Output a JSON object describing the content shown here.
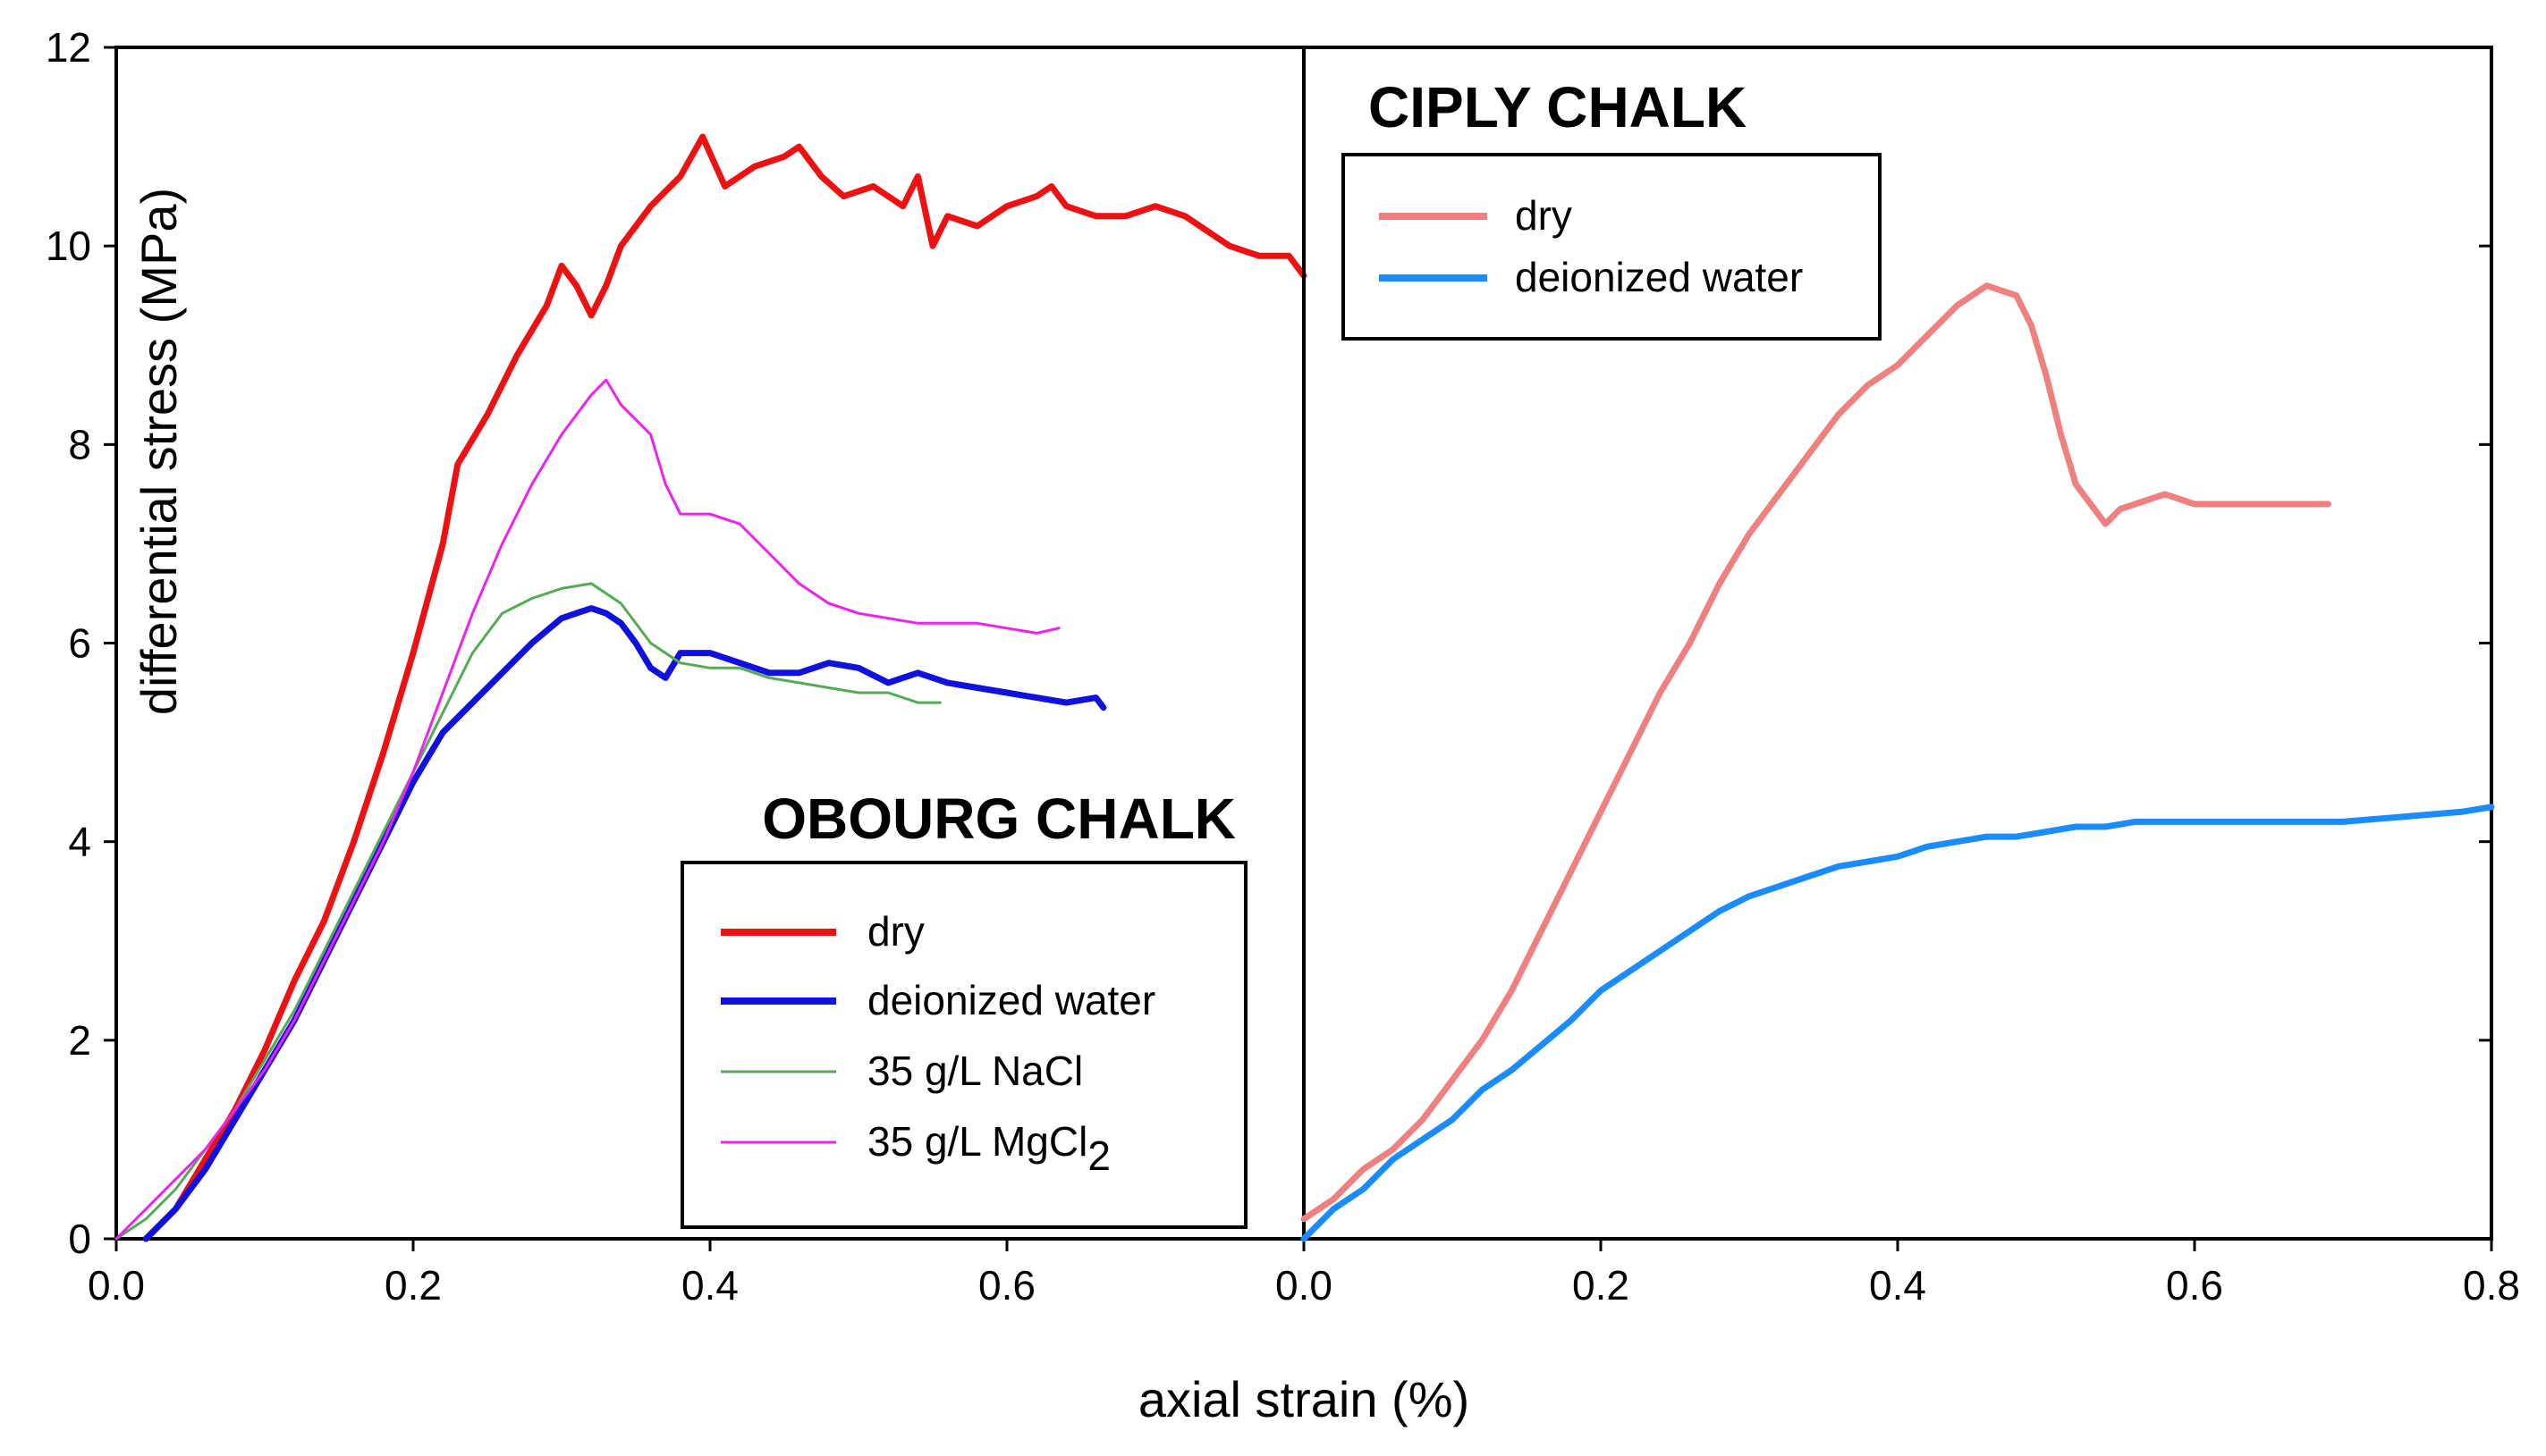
{
  "chart_data": {
    "type": "line",
    "xlabel": "axial strain (%)",
    "ylabel": "differential  stress (MPa)",
    "ylim": [
      0,
      12
    ],
    "yticks": [
      "0",
      "2",
      "4",
      "6",
      "8",
      "10",
      "12"
    ],
    "panels": [
      {
        "title": "OBOURG CHALK",
        "xlim": [
          0,
          0.8
        ],
        "xticks": [
          "0.0",
          "0.2",
          "0.4",
          "0.6"
        ],
        "legend_position": "bottom-right",
        "series": [
          {
            "name": "dry",
            "color": "#ee1111",
            "weight": "thick",
            "points": [
              [
                0.02,
                0
              ],
              [
                0.04,
                0.3
              ],
              [
                0.06,
                0.8
              ],
              [
                0.08,
                1.3
              ],
              [
                0.1,
                1.9
              ],
              [
                0.12,
                2.6
              ],
              [
                0.14,
                3.2
              ],
              [
                0.16,
                4.0
              ],
              [
                0.18,
                4.9
              ],
              [
                0.2,
                5.9
              ],
              [
                0.22,
                7.0
              ],
              [
                0.23,
                7.8
              ],
              [
                0.25,
                8.3
              ],
              [
                0.27,
                8.9
              ],
              [
                0.29,
                9.4
              ],
              [
                0.3,
                9.8
              ],
              [
                0.31,
                9.6
              ],
              [
                0.32,
                9.3
              ],
              [
                0.33,
                9.6
              ],
              [
                0.34,
                10.0
              ],
              [
                0.36,
                10.4
              ],
              [
                0.38,
                10.7
              ],
              [
                0.395,
                11.1
              ],
              [
                0.41,
                10.6
              ],
              [
                0.43,
                10.8
              ],
              [
                0.45,
                10.9
              ],
              [
                0.46,
                11.0
              ],
              [
                0.475,
                10.7
              ],
              [
                0.49,
                10.5
              ],
              [
                0.51,
                10.6
              ],
              [
                0.53,
                10.4
              ],
              [
                0.54,
                10.7
              ],
              [
                0.55,
                10.0
              ],
              [
                0.56,
                10.3
              ],
              [
                0.58,
                10.2
              ],
              [
                0.6,
                10.4
              ],
              [
                0.62,
                10.5
              ],
              [
                0.63,
                10.6
              ],
              [
                0.64,
                10.4
              ],
              [
                0.66,
                10.3
              ],
              [
                0.68,
                10.3
              ],
              [
                0.7,
                10.4
              ],
              [
                0.72,
                10.3
              ],
              [
                0.74,
                10.1
              ],
              [
                0.75,
                10.0
              ],
              [
                0.77,
                9.9
              ],
              [
                0.79,
                9.9
              ],
              [
                0.8,
                9.7
              ]
            ]
          },
          {
            "name": "deionized water",
            "color": "#1111dd",
            "weight": "thick",
            "points": [
              [
                0.02,
                0
              ],
              [
                0.04,
                0.3
              ],
              [
                0.06,
                0.7
              ],
              [
                0.08,
                1.2
              ],
              [
                0.1,
                1.7
              ],
              [
                0.12,
                2.2
              ],
              [
                0.14,
                2.8
              ],
              [
                0.16,
                3.4
              ],
              [
                0.18,
                4.0
              ],
              [
                0.2,
                4.6
              ],
              [
                0.22,
                5.1
              ],
              [
                0.24,
                5.4
              ],
              [
                0.26,
                5.7
              ],
              [
                0.28,
                6.0
              ],
              [
                0.3,
                6.25
              ],
              [
                0.32,
                6.35
              ],
              [
                0.33,
                6.3
              ],
              [
                0.34,
                6.2
              ],
              [
                0.35,
                6.0
              ],
              [
                0.36,
                5.75
              ],
              [
                0.37,
                5.65
              ],
              [
                0.38,
                5.9
              ],
              [
                0.4,
                5.9
              ],
              [
                0.42,
                5.8
              ],
              [
                0.44,
                5.7
              ],
              [
                0.46,
                5.7
              ],
              [
                0.48,
                5.8
              ],
              [
                0.5,
                5.75
              ],
              [
                0.52,
                5.6
              ],
              [
                0.54,
                5.7
              ],
              [
                0.56,
                5.6
              ],
              [
                0.58,
                5.55
              ],
              [
                0.6,
                5.5
              ],
              [
                0.62,
                5.45
              ],
              [
                0.64,
                5.4
              ],
              [
                0.66,
                5.45
              ],
              [
                0.665,
                5.35
              ]
            ]
          },
          {
            "name": "35 g/L NaCl",
            "color": "#55aa55",
            "weight": "thin",
            "points": [
              [
                0.0,
                0
              ],
              [
                0.02,
                0.2
              ],
              [
                0.04,
                0.5
              ],
              [
                0.06,
                0.9
              ],
              [
                0.08,
                1.3
              ],
              [
                0.1,
                1.8
              ],
              [
                0.12,
                2.3
              ],
              [
                0.14,
                2.9
              ],
              [
                0.16,
                3.5
              ],
              [
                0.18,
                4.1
              ],
              [
                0.2,
                4.7
              ],
              [
                0.22,
                5.3
              ],
              [
                0.24,
                5.9
              ],
              [
                0.26,
                6.3
              ],
              [
                0.28,
                6.45
              ],
              [
                0.3,
                6.55
              ],
              [
                0.32,
                6.6
              ],
              [
                0.34,
                6.4
              ],
              [
                0.36,
                6.0
              ],
              [
                0.38,
                5.8
              ],
              [
                0.4,
                5.75
              ],
              [
                0.42,
                5.75
              ],
              [
                0.44,
                5.65
              ],
              [
                0.46,
                5.6
              ],
              [
                0.48,
                5.55
              ],
              [
                0.5,
                5.5
              ],
              [
                0.52,
                5.5
              ],
              [
                0.54,
                5.4
              ],
              [
                0.555,
                5.4
              ]
            ]
          },
          {
            "name": "35 g/L MgCl2",
            "label": "35 g/L MgCl",
            "subscript": "2",
            "color": "#ee22ee",
            "weight": "thin",
            "points": [
              [
                0.0,
                0
              ],
              [
                0.02,
                0.3
              ],
              [
                0.04,
                0.6
              ],
              [
                0.06,
                0.9
              ],
              [
                0.08,
                1.3
              ],
              [
                0.1,
                1.7
              ],
              [
                0.12,
                2.2
              ],
              [
                0.14,
                2.8
              ],
              [
                0.16,
                3.4
              ],
              [
                0.18,
                4.0
              ],
              [
                0.2,
                4.7
              ],
              [
                0.22,
                5.5
              ],
              [
                0.24,
                6.3
              ],
              [
                0.26,
                7.0
              ],
              [
                0.28,
                7.6
              ],
              [
                0.3,
                8.1
              ],
              [
                0.32,
                8.5
              ],
              [
                0.33,
                8.65
              ],
              [
                0.34,
                8.4
              ],
              [
                0.36,
                8.1
              ],
              [
                0.37,
                7.6
              ],
              [
                0.38,
                7.3
              ],
              [
                0.4,
                7.3
              ],
              [
                0.42,
                7.2
              ],
              [
                0.44,
                6.9
              ],
              [
                0.46,
                6.6
              ],
              [
                0.48,
                6.4
              ],
              [
                0.5,
                6.3
              ],
              [
                0.52,
                6.25
              ],
              [
                0.54,
                6.2
              ],
              [
                0.56,
                6.2
              ],
              [
                0.58,
                6.2
              ],
              [
                0.6,
                6.15
              ],
              [
                0.62,
                6.1
              ],
              [
                0.635,
                6.15
              ]
            ]
          }
        ]
      },
      {
        "title": "CIPLY CHALK",
        "xlim": [
          0,
          0.8
        ],
        "xticks": [
          "0.0",
          "0.2",
          "0.4",
          "0.6",
          "0.8"
        ],
        "legend_position": "top-left",
        "series": [
          {
            "name": "dry",
            "color": "#f08080",
            "weight": "thick",
            "points": [
              [
                0.0,
                0.2
              ],
              [
                0.02,
                0.4
              ],
              [
                0.04,
                0.7
              ],
              [
                0.06,
                0.9
              ],
              [
                0.08,
                1.2
              ],
              [
                0.1,
                1.6
              ],
              [
                0.12,
                2.0
              ],
              [
                0.14,
                2.5
              ],
              [
                0.16,
                3.1
              ],
              [
                0.18,
                3.7
              ],
              [
                0.2,
                4.3
              ],
              [
                0.22,
                4.9
              ],
              [
                0.24,
                5.5
              ],
              [
                0.26,
                6.0
              ],
              [
                0.28,
                6.6
              ],
              [
                0.3,
                7.1
              ],
              [
                0.32,
                7.5
              ],
              [
                0.34,
                7.9
              ],
              [
                0.36,
                8.3
              ],
              [
                0.38,
                8.6
              ],
              [
                0.4,
                8.8
              ],
              [
                0.42,
                9.1
              ],
              [
                0.44,
                9.4
              ],
              [
                0.46,
                9.6
              ],
              [
                0.47,
                9.55
              ],
              [
                0.48,
                9.5
              ],
              [
                0.49,
                9.2
              ],
              [
                0.5,
                8.7
              ],
              [
                0.51,
                8.1
              ],
              [
                0.52,
                7.6
              ],
              [
                0.53,
                7.4
              ],
              [
                0.54,
                7.2
              ],
              [
                0.55,
                7.35
              ],
              [
                0.56,
                7.4
              ],
              [
                0.58,
                7.5
              ],
              [
                0.6,
                7.4
              ],
              [
                0.62,
                7.4
              ],
              [
                0.64,
                7.4
              ],
              [
                0.66,
                7.4
              ],
              [
                0.69,
                7.4
              ]
            ]
          },
          {
            "name": "deionized water",
            "color": "#1a8cff",
            "weight": "thick",
            "points": [
              [
                0.0,
                0
              ],
              [
                0.02,
                0.3
              ],
              [
                0.04,
                0.5
              ],
              [
                0.06,
                0.8
              ],
              [
                0.08,
                1.0
              ],
              [
                0.1,
                1.2
              ],
              [
                0.12,
                1.5
              ],
              [
                0.14,
                1.7
              ],
              [
                0.16,
                1.95
              ],
              [
                0.18,
                2.2
              ],
              [
                0.2,
                2.5
              ],
              [
                0.22,
                2.7
              ],
              [
                0.24,
                2.9
              ],
              [
                0.26,
                3.1
              ],
              [
                0.28,
                3.3
              ],
              [
                0.3,
                3.45
              ],
              [
                0.32,
                3.55
              ],
              [
                0.34,
                3.65
              ],
              [
                0.36,
                3.75
              ],
              [
                0.38,
                3.8
              ],
              [
                0.4,
                3.85
              ],
              [
                0.42,
                3.95
              ],
              [
                0.44,
                4.0
              ],
              [
                0.46,
                4.05
              ],
              [
                0.48,
                4.05
              ],
              [
                0.5,
                4.1
              ],
              [
                0.52,
                4.15
              ],
              [
                0.54,
                4.15
              ],
              [
                0.56,
                4.2
              ],
              [
                0.58,
                4.2
              ],
              [
                0.6,
                4.2
              ],
              [
                0.62,
                4.2
              ],
              [
                0.64,
                4.2
              ],
              [
                0.66,
                4.2
              ],
              [
                0.7,
                4.2
              ],
              [
                0.74,
                4.25
              ],
              [
                0.78,
                4.3
              ],
              [
                0.8,
                4.35
              ]
            ]
          }
        ]
      }
    ]
  }
}
